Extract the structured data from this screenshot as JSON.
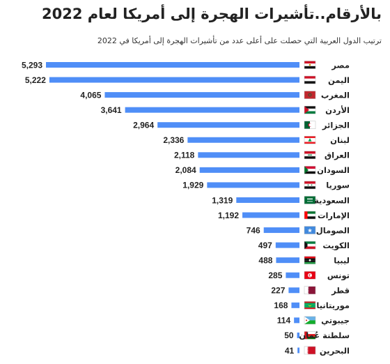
{
  "title": "بالأرقام..تأشيرات الهجرة إلى أمريكا لعام 2022",
  "subtitle": "ترتيب الدول العربية التي حصلت على أعلى عدد من تأشيرات الهجرة إلى أمريكا في 2022",
  "chart_data": {
    "type": "bar",
    "orientation": "horizontal",
    "title": "بالأرقام..تأشيرات الهجرة إلى أمريكا لعام 2022",
    "subtitle": "ترتيب الدول العربية التي حصلت على أعلى عدد من تأشيرات الهجرة إلى أمريكا في 2022",
    "bar_color": "#4f8ef7",
    "categories": [
      "مصر",
      "اليمن",
      "المغرب",
      "الأردن",
      "الجزائر",
      "لبنان",
      "العراق",
      "السودان",
      "سوريا",
      "السعودية",
      "الإمارات",
      "الصومال",
      "الكويت",
      "ليبيا",
      "تونس",
      "قطر",
      "موريتانيا",
      "جيبوتي",
      "سلطنة عُمان",
      "البحرين"
    ],
    "values": [
      5293,
      5222,
      4065,
      3641,
      2964,
      2336,
      2118,
      2084,
      1929,
      1319,
      1192,
      746,
      497,
      488,
      285,
      227,
      168,
      114,
      50,
      41
    ],
    "value_labels": [
      "5,293",
      "5,222",
      "4,065",
      "3,641",
      "2,964",
      "2,336",
      "2,118",
      "2,084",
      "1,929",
      "1,319",
      "1,192",
      "746",
      "497",
      "488",
      "285",
      "227",
      "168",
      "114",
      "50",
      "41"
    ],
    "flags": [
      "egypt-flag",
      "yemen-flag",
      "morocco-flag",
      "jordan-flag",
      "algeria-flag",
      "lebanon-flag",
      "iraq-flag",
      "sudan-flag",
      "syria-flag",
      "saudi-arabia-flag",
      "uae-flag",
      "somalia-flag",
      "kuwait-flag",
      "libya-flag",
      "tunisia-flag",
      "qatar-flag",
      "mauritania-flag",
      "djibouti-flag",
      "oman-flag",
      "bahrain-flag"
    ],
    "xlim": [
      0,
      5293
    ],
    "grid": false,
    "legend": "none"
  }
}
